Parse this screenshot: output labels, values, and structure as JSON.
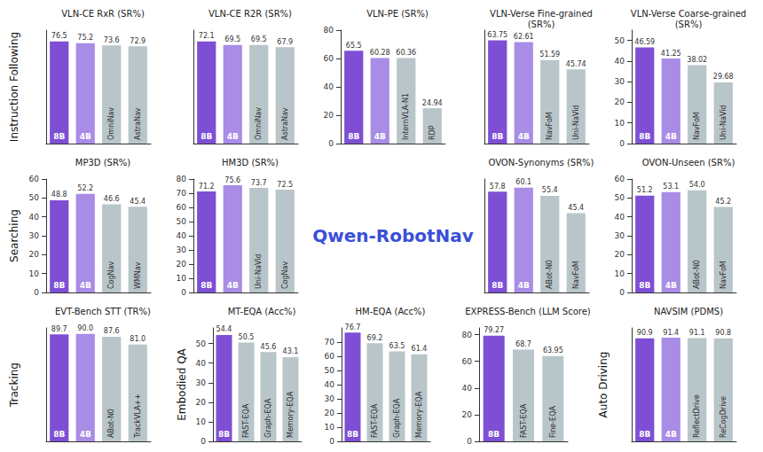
{
  "row_labels": [
    "Instruction Following",
    "Searching",
    "Tracking",
    "Embodied QA",
    "Auto Driving"
  ],
  "logo": "Qwen-RobotNav",
  "chart_data": [
    {
      "type": "bar",
      "title": "VLN-CE RxR (SR%)",
      "categories": [
        "8B",
        "4B",
        "OmniNav",
        "AstraNav"
      ],
      "values": [
        76.5,
        75.2,
        73.6,
        72.9
      ],
      "colors": [
        "#7e4fd4",
        "#a98ce6",
        "#b8c5c9",
        "#b8c5c9"
      ],
      "ylim": [
        0,
        85
      ],
      "tick_labels": false,
      "data_labels": true,
      "grid": false
    },
    {
      "type": "bar",
      "title": "VLN-CE R2R (SR%)",
      "categories": [
        "8B",
        "4B",
        "OmniNav",
        "AstraNav"
      ],
      "values": [
        72.1,
        69.5,
        69.5,
        67.9
      ],
      "colors": [
        "#7e4fd4",
        "#a98ce6",
        "#b8c5c9",
        "#b8c5c9"
      ],
      "ylim": [
        0,
        80
      ],
      "tick_labels": false,
      "data_labels": true,
      "grid": false
    },
    {
      "type": "bar",
      "title": "VLN-PE (SR%)",
      "categories": [
        "8B",
        "4B",
        "InternVLA-N1",
        "RDP"
      ],
      "values": [
        65.5,
        60.28,
        60.36,
        24.94
      ],
      "colors": [
        "#7e4fd4",
        "#a98ce6",
        "#b8c5c9",
        "#b8c5c9"
      ],
      "ylim": [
        0,
        80
      ],
      "yticks": [
        0,
        20,
        40,
        60,
        80
      ],
      "data_labels": true,
      "grid": false
    },
    {
      "type": "bar",
      "title": "VLN-Verse Fine-grained (SR%)",
      "categories": [
        "8B",
        "4B",
        "NavFoM",
        "Uni-NaVid"
      ],
      "values": [
        63.75,
        62.61,
        51.59,
        45.74
      ],
      "colors": [
        "#7e4fd4",
        "#a98ce6",
        "#b8c5c9",
        "#b8c5c9"
      ],
      "ylim": [
        0,
        70
      ],
      "tick_labels": false,
      "data_labels": true,
      "grid": false
    },
    {
      "type": "bar",
      "title": "VLN-Verse Coarse-grained (SR%)",
      "categories": [
        "8B",
        "4B",
        "NavFoM",
        "Uni-NaVid"
      ],
      "values": [
        46.59,
        41.25,
        38.02,
        29.68
      ],
      "colors": [
        "#7e4fd4",
        "#a98ce6",
        "#b8c5c9",
        "#b8c5c9"
      ],
      "ylim": [
        0,
        55
      ],
      "yticks": [
        0,
        10,
        20,
        30,
        40,
        50
      ],
      "data_labels": true,
      "grid": false
    },
    {
      "type": "bar",
      "title": "MP3D (SR%)",
      "categories": [
        "8B",
        "4B",
        "CogNav",
        "WMNav"
      ],
      "values": [
        48.8,
        52.2,
        46.6,
        45.4
      ],
      "colors": [
        "#7e4fd4",
        "#a98ce6",
        "#b8c5c9",
        "#b8c5c9"
      ],
      "ylim": [
        0,
        60
      ],
      "yticks": [
        0,
        10,
        20,
        30,
        40,
        50,
        60
      ],
      "data_labels": true,
      "grid": false
    },
    {
      "type": "bar",
      "title": "HM3D (SR%)",
      "categories": [
        "8B",
        "4B",
        "Uni-NaVid",
        "CogNav"
      ],
      "values": [
        71.2,
        75.6,
        73.7,
        72.5
      ],
      "colors": [
        "#7e4fd4",
        "#a98ce6",
        "#b8c5c9",
        "#b8c5c9"
      ],
      "ylim": [
        0,
        80
      ],
      "yticks": [
        0,
        10,
        20,
        30,
        40,
        50,
        60,
        70,
        80
      ],
      "data_labels": true,
      "grid": false
    },
    {
      "type": "bar",
      "title": "OVON-Synonyms (SR%)",
      "categories": [
        "8B",
        "4B",
        "ABot-N0",
        "NavFoM"
      ],
      "values": [
        57.8,
        60.1,
        55.4,
        45.4
      ],
      "colors": [
        "#7e4fd4",
        "#a98ce6",
        "#b8c5c9",
        "#b8c5c9"
      ],
      "ylim": [
        0,
        65
      ],
      "tick_labels": false,
      "data_labels": true,
      "grid": false
    },
    {
      "type": "bar",
      "title": "OVON-Unseen (SR%)",
      "categories": [
        "8B",
        "4B",
        "ABot-N0",
        "NavFoM"
      ],
      "values": [
        51.2,
        53.1,
        54.0,
        45.2
      ],
      "value_labels": [
        "51.2",
        "53.1",
        "54.0",
        "45.2"
      ],
      "colors": [
        "#7e4fd4",
        "#a98ce6",
        "#b8c5c9",
        "#b8c5c9"
      ],
      "ylim": [
        0,
        60
      ],
      "yticks": [
        0,
        10,
        20,
        30,
        40,
        50,
        60
      ],
      "data_labels": true,
      "grid": false
    },
    {
      "type": "bar",
      "title": "EVT-Bench STT (TR%)",
      "categories": [
        "8B",
        "4B",
        "ABot-N0",
        "TrackVLA++"
      ],
      "values": [
        89.7,
        90.0,
        87.6,
        81.0
      ],
      "value_labels": [
        "89.7",
        "90.0",
        "87.6",
        "81.0"
      ],
      "colors": [
        "#7e4fd4",
        "#a98ce6",
        "#b8c5c9",
        "#b8c5c9"
      ],
      "ylim": [
        0,
        95
      ],
      "tick_labels": false,
      "data_labels": true,
      "grid": false
    },
    {
      "type": "bar",
      "title": "MT-EQA (Acc%)",
      "categories": [
        "8B",
        "FAST-EQA",
        "Graph-EQA",
        "Memory-EQA"
      ],
      "values": [
        54.4,
        50.5,
        45.6,
        43.1
      ],
      "colors": [
        "#7e4fd4",
        "#b8c5c9",
        "#b8c5c9",
        "#b8c5c9"
      ],
      "ylim": [
        0,
        58
      ],
      "yticks": [
        0,
        10,
        20,
        30,
        40,
        50
      ],
      "data_labels": true,
      "grid": false
    },
    {
      "type": "bar",
      "title": "HM-EQA (Acc%)",
      "categories": [
        "8B",
        "FAST-EQA",
        "Graph-EQA",
        "Memory-EQA"
      ],
      "values": [
        76.7,
        69.2,
        63.5,
        61.4
      ],
      "colors": [
        "#7e4fd4",
        "#b8c5c9",
        "#b8c5c9",
        "#b8c5c9"
      ],
      "ylim": [
        0,
        80
      ],
      "yticks": [
        0,
        10,
        20,
        30,
        40,
        50,
        60,
        70
      ],
      "data_labels": true,
      "grid": false
    },
    {
      "type": "bar",
      "title": "EXPRESS-Bench (LLM Score)",
      "categories": [
        "8B",
        "FAST-EQA",
        "Fine-EQA"
      ],
      "values": [
        79.27,
        68.7,
        63.95
      ],
      "colors": [
        "#7e4fd4",
        "#b8c5c9",
        "#b8c5c9"
      ],
      "ylim": [
        0,
        85
      ],
      "yticks": [
        0,
        20,
        40,
        60,
        80
      ],
      "data_labels": true,
      "grid": false
    },
    {
      "type": "bar",
      "title": "NAVSIM (PDMS)",
      "categories": [
        "8B",
        "4B",
        "ReflectDrive",
        "ReCogDrive"
      ],
      "values": [
        90.9,
        91.4,
        91.1,
        90.8
      ],
      "colors": [
        "#7e4fd4",
        "#a98ce6",
        "#b8c5c9",
        "#b8c5c9"
      ],
      "ylim": [
        0,
        100
      ],
      "tick_labels": false,
      "data_labels": true,
      "grid": false
    }
  ]
}
